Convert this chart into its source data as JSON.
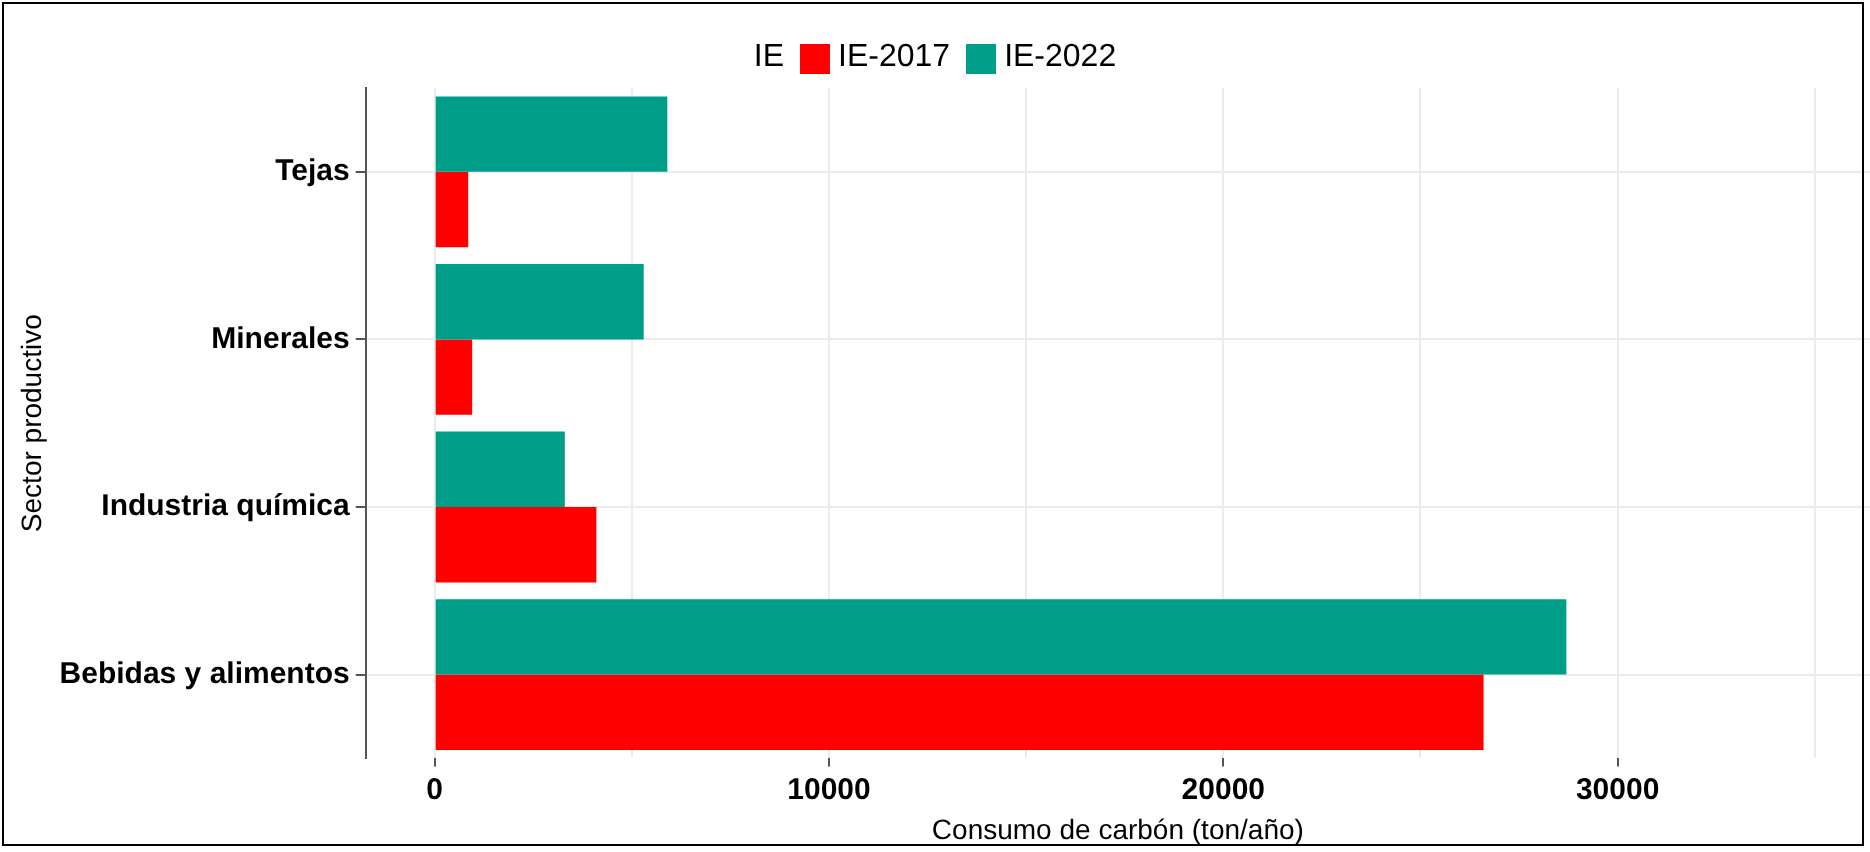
{
  "chart_data": {
    "type": "bar",
    "orientation": "horizontal",
    "xlabel": "Consumo de carbón (ton/año)",
    "ylabel": "Sector productivo",
    "legend_title": "IE",
    "legend": "top",
    "categories": [
      "Tejas",
      "Minerales",
      "Industria química",
      "Bebidas y alimentos"
    ],
    "series": [
      {
        "name": "IE-2017",
        "color": "#ff0000",
        "values": [
          850,
          950,
          4100,
          26600
        ]
      },
      {
        "name": "IE-2022",
        "color": "#009e88",
        "values": [
          5900,
          5300,
          3300,
          28700
        ]
      }
    ],
    "xlim": [
      -1750,
      36400
    ],
    "xticks": [
      0,
      {
        "value": 5000,
        "label": null
      },
      10000,
      {
        "value": 15000,
        "label": null
      },
      20000,
      {
        "value": 25000,
        "label": null
      },
      30000,
      {
        "value": 35000,
        "label": null
      }
    ],
    "grid": true
  }
}
